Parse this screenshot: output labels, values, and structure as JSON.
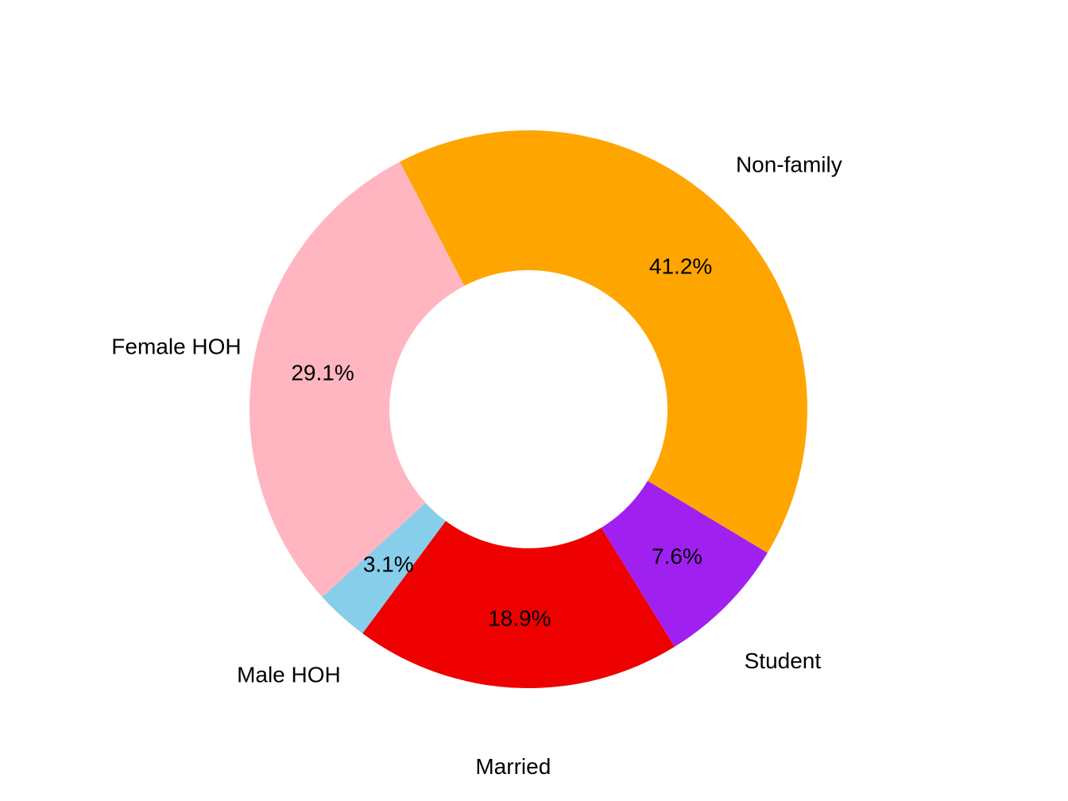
{
  "chart_data": {
    "type": "pie",
    "title": "",
    "donut": true,
    "start_angle_deg": -31,
    "direction": "counterclockwise",
    "slices": [
      {
        "label": "Non-family",
        "value": 41.2,
        "pct_label": "41.2%",
        "color": "#FFA500"
      },
      {
        "label": "Female HOH",
        "value": 29.1,
        "pct_label": "29.1%",
        "color": "#FFB6C1"
      },
      {
        "label": "Male HOH",
        "value": 3.1,
        "pct_label": "3.1%",
        "color": "#87CEEB"
      },
      {
        "label": "Married",
        "value": 18.9,
        "pct_label": "18.9%",
        "color": "#EE0000"
      },
      {
        "label": "Student",
        "value": 7.6,
        "pct_label": "7.6%",
        "color": "#A020F0"
      }
    ]
  }
}
